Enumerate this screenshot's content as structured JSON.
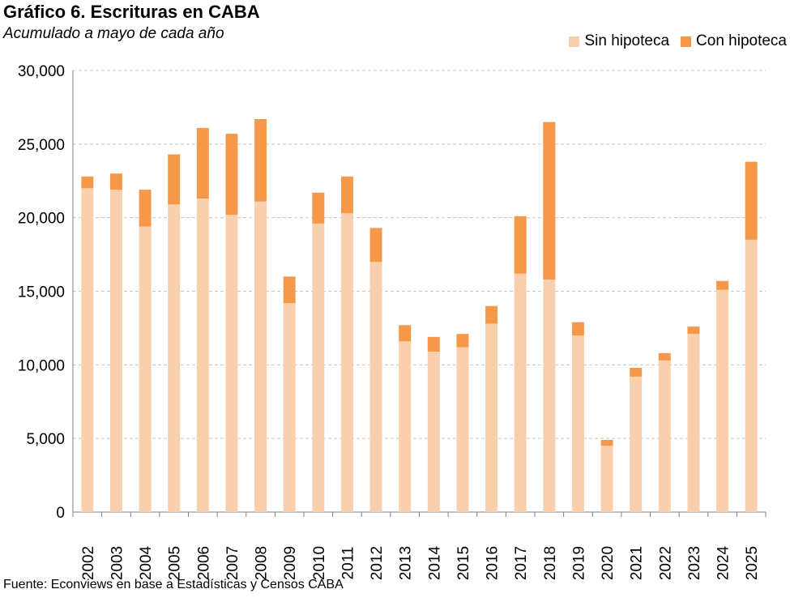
{
  "title": "Gráfico 6. Escrituras en CABA",
  "subtitle": "Acumulado a mayo de cada año",
  "source": "Fuente: Econviews en base a Estadísticas y Censos CABA",
  "colors": {
    "sin": "#f9d0ae",
    "con": "#f5984a",
    "grid": "#c8c8c8",
    "axis": "#808080"
  },
  "chart_data": {
    "type": "bar",
    "stacked": true,
    "title": "Gráfico 6. Escrituras en CABA",
    "subtitle": "Acumulado a mayo de cada año",
    "xlabel": "",
    "ylabel": "",
    "ylim": [
      0,
      30000
    ],
    "yticks": [
      0,
      5000,
      10000,
      15000,
      20000,
      25000,
      30000
    ],
    "ytick_labels": [
      "0",
      "5,000",
      "10,000",
      "15,000",
      "20,000",
      "25,000",
      "30,000"
    ],
    "grid": true,
    "legend_position": "top-right",
    "categories": [
      "2002",
      "2003",
      "2004",
      "2005",
      "2006",
      "2007",
      "2008",
      "2009",
      "2010",
      "2011",
      "2012",
      "2013",
      "2014",
      "2015",
      "2016",
      "2017",
      "2018",
      "2019",
      "2020",
      "2021",
      "2022",
      "2023",
      "2024",
      "2025"
    ],
    "series": [
      {
        "name": "Sin hipoteca",
        "values": [
          22000,
          21900,
          19400,
          20900,
          21300,
          20200,
          21100,
          14200,
          19600,
          20300,
          17000,
          11600,
          10900,
          11200,
          12800,
          16200,
          15800,
          12000,
          4500,
          9200,
          10300,
          12100,
          15100,
          18500
        ]
      },
      {
        "name": "Con hipoteca",
        "values": [
          800,
          1100,
          2500,
          3400,
          4800,
          5500,
          5600,
          1800,
          2100,
          2500,
          2300,
          1100,
          1000,
          900,
          1200,
          3900,
          10700,
          900,
          400,
          600,
          500,
          500,
          600,
          5300
        ]
      }
    ]
  }
}
